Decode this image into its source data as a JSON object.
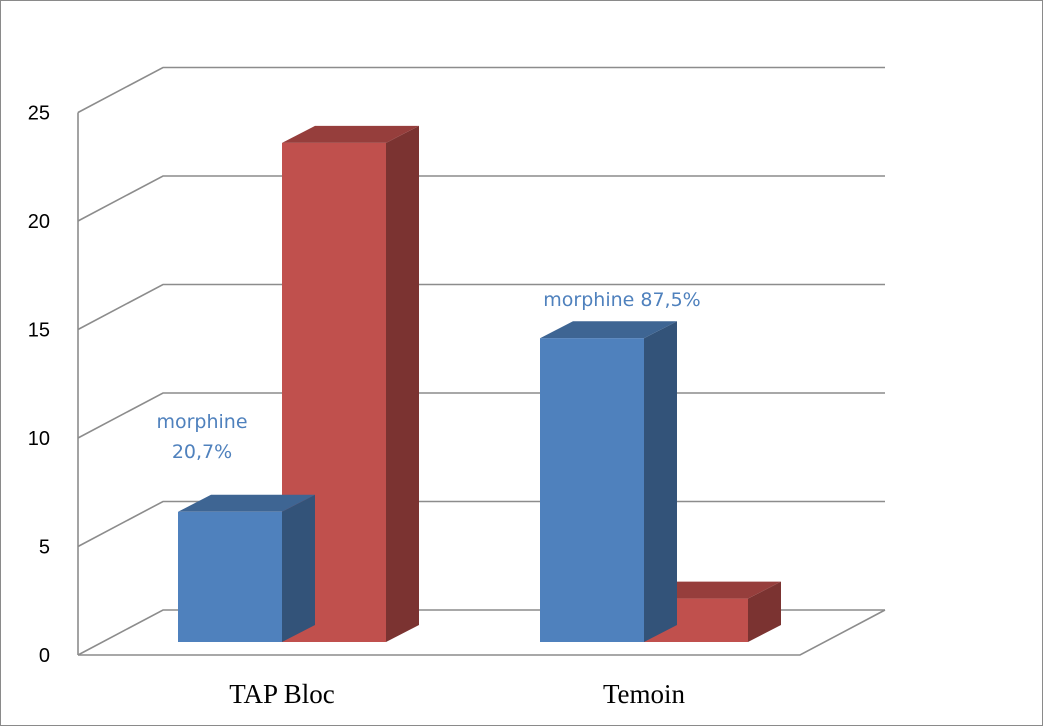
{
  "chart_data": {
    "type": "bar",
    "style": "3d-clustered-column",
    "categories": [
      "TAP Bloc",
      "Temoin"
    ],
    "series": [
      {
        "values": [
          6,
          14
        ],
        "color": "#4f81bd"
      },
      {
        "values": [
          23,
          2
        ],
        "color": "#c0504d"
      }
    ],
    "ylim": [
      0,
      25
    ],
    "yticks": [
      0,
      5,
      10,
      15,
      20,
      25
    ],
    "grid": true,
    "legend": "none",
    "annotations": [
      {
        "category": "TAP Bloc",
        "lines": [
          "morphine",
          "20,7%"
        ]
      },
      {
        "category": "Temoin",
        "lines": [
          "morphine 87,5%"
        ]
      }
    ]
  }
}
